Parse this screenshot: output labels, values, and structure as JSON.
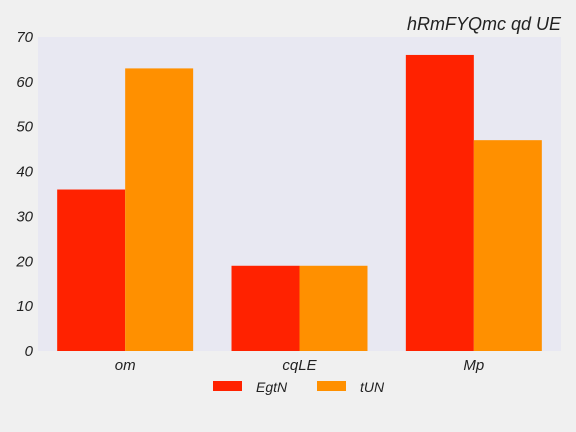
{
  "chart_data": {
    "type": "bar",
    "title": "hRmFYQmc qd UE",
    "xlabel": "",
    "ylabel": "",
    "categories": [
      "om",
      "cqLE",
      "Mp"
    ],
    "series": [
      {
        "name": "EgtN",
        "values": [
          36,
          19,
          66
        ],
        "color": "#ff2200"
      },
      {
        "name": "tUN",
        "values": [
          63,
          19,
          47
        ],
        "color": "#ff9000"
      }
    ],
    "ylim": [
      0,
      70
    ],
    "yticks": [
      "0",
      "10",
      "20",
      "30",
      "40",
      "50",
      "60",
      "70"
    ],
    "grid": false,
    "legend_position": "bottom-center",
    "plot_background": "#e8e8f2",
    "figure_background": "#f0f0f0"
  }
}
